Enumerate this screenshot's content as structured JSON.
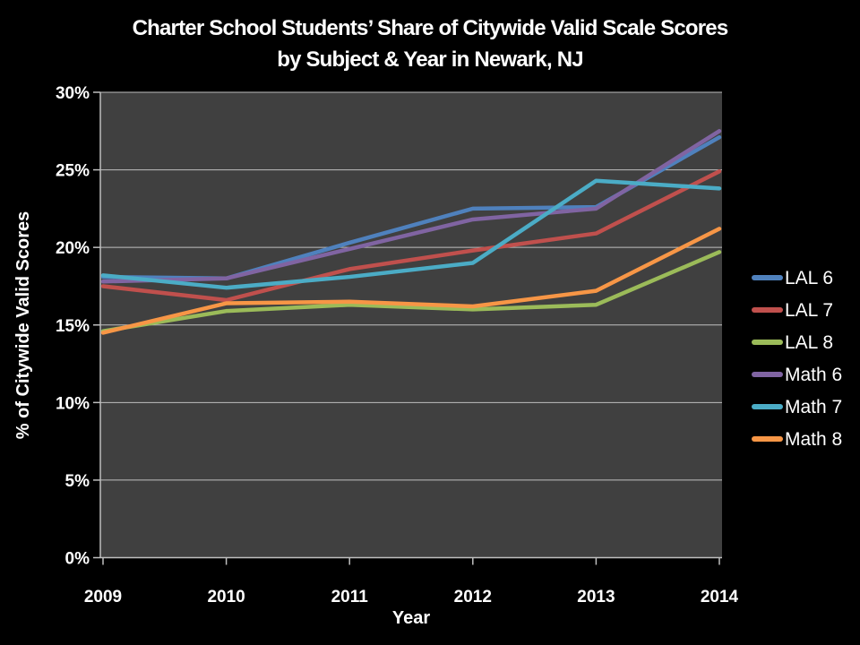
{
  "slide": {
    "title_line1": "Charter School Students’ Share of Citywide Valid Scale Scores",
    "title_line2": "by Subject & Year in Newark, NJ"
  },
  "chart_data": {
    "type": "line",
    "title": "Charter School Students’ Share of Citywide Valid Scale Scores by Subject & Year in Newark, NJ",
    "xlabel": "Year",
    "ylabel": "% of Citywide Valid Scores",
    "x": [
      "2009",
      "2010",
      "2011",
      "2012",
      "2013",
      "2014"
    ],
    "ylim": [
      0,
      30
    ],
    "ytick_step": 5,
    "ytick_labels": [
      "0%",
      "5%",
      "10%",
      "15%",
      "20%",
      "25%",
      "30%"
    ],
    "grid": true,
    "legend_position": "right",
    "series": [
      {
        "name": "LAL 6",
        "color": "#4F81BD",
        "values": [
          18.1,
          18.0,
          20.3,
          22.5,
          22.6,
          27.1
        ]
      },
      {
        "name": "LAL 7",
        "color": "#C0504D",
        "values": [
          17.5,
          16.6,
          18.6,
          19.8,
          20.9,
          24.9
        ]
      },
      {
        "name": "LAL 8",
        "color": "#9BBB59",
        "values": [
          14.6,
          15.9,
          16.3,
          16.0,
          16.3,
          19.7
        ]
      },
      {
        "name": "Math 6",
        "color": "#8064A2",
        "values": [
          17.8,
          18.0,
          19.9,
          21.8,
          22.5,
          27.5
        ]
      },
      {
        "name": "Math 7",
        "color": "#4BACC6",
        "values": [
          18.2,
          17.4,
          18.1,
          19.0,
          24.3,
          23.8
        ]
      },
      {
        "name": "Math 8",
        "color": "#F79646",
        "values": [
          14.5,
          16.4,
          16.5,
          16.2,
          17.2,
          21.2
        ]
      }
    ]
  },
  "theme": {
    "background": "#000000",
    "plot_background": "#404040",
    "gridline": "#BFBFBF",
    "axis_line": "#BFBFBF",
    "text": "#FFFFFF"
  }
}
